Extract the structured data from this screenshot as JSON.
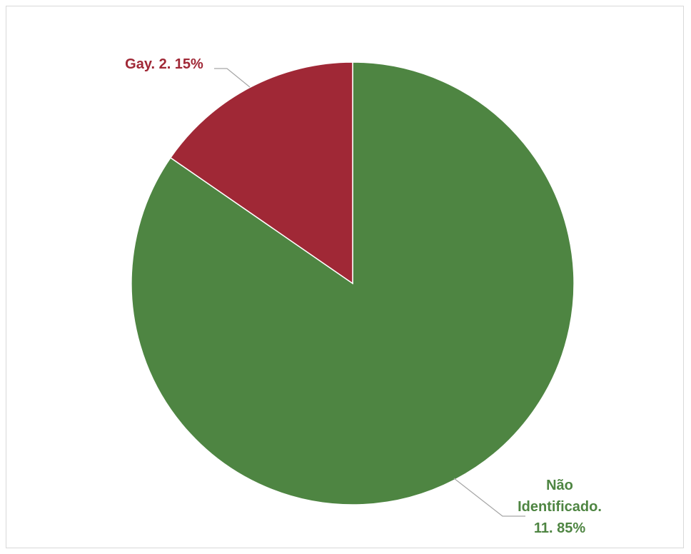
{
  "chart_data": {
    "type": "pie",
    "title": "",
    "series": [
      {
        "name": "",
        "slices": [
          {
            "label": "Não Identificado",
            "count": 11,
            "percent": 85,
            "color": "#4e8542",
            "label_lines": [
              "Não",
              "Identificado.",
              "11. 85%"
            ]
          },
          {
            "label": "Gay",
            "count": 2,
            "percent": 15,
            "color": "#a02836",
            "label_lines": [
              "Gay. 2. 15%"
            ]
          }
        ]
      }
    ],
    "legend": "none",
    "start_angle_deg": 0,
    "direction": "clockwise"
  }
}
